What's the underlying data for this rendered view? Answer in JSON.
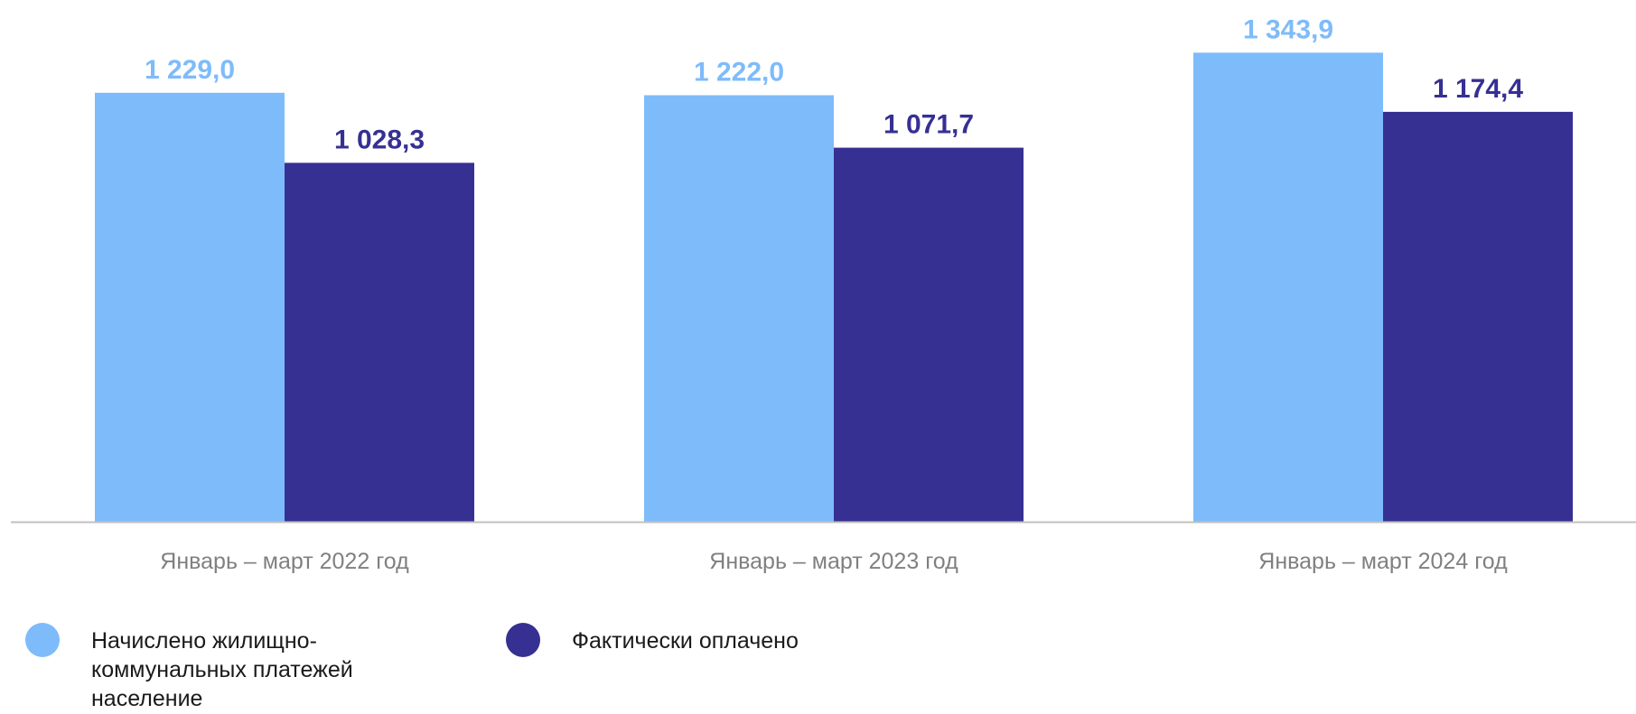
{
  "chart_data": {
    "type": "bar",
    "categories": [
      "Январь – март 2022 год",
      "Январь – март 2023 год",
      "Январь – март 2024 год"
    ],
    "series": [
      {
        "name": "Начислено жилищно-коммунальных платежей население",
        "values": [
          1229.0,
          1222.0,
          1343.9
        ],
        "labels": [
          "1 229,0",
          "1 222,0",
          "1 343,9"
        ],
        "color": "#7EBBFB"
      },
      {
        "name": "Фактически оплачено",
        "values": [
          1028.3,
          1071.7,
          1174.4
        ],
        "labels": [
          "1 028,3",
          "1 071,7",
          "1 174,4"
        ],
        "color": "#363093"
      }
    ],
    "title": "",
    "xlabel": "",
    "ylabel": "",
    "ylim": [
      0,
      1350
    ],
    "grid": false,
    "legend": "bottom-left",
    "axis_color": "#C0C0C0",
    "tick_label_color": "#808080"
  }
}
